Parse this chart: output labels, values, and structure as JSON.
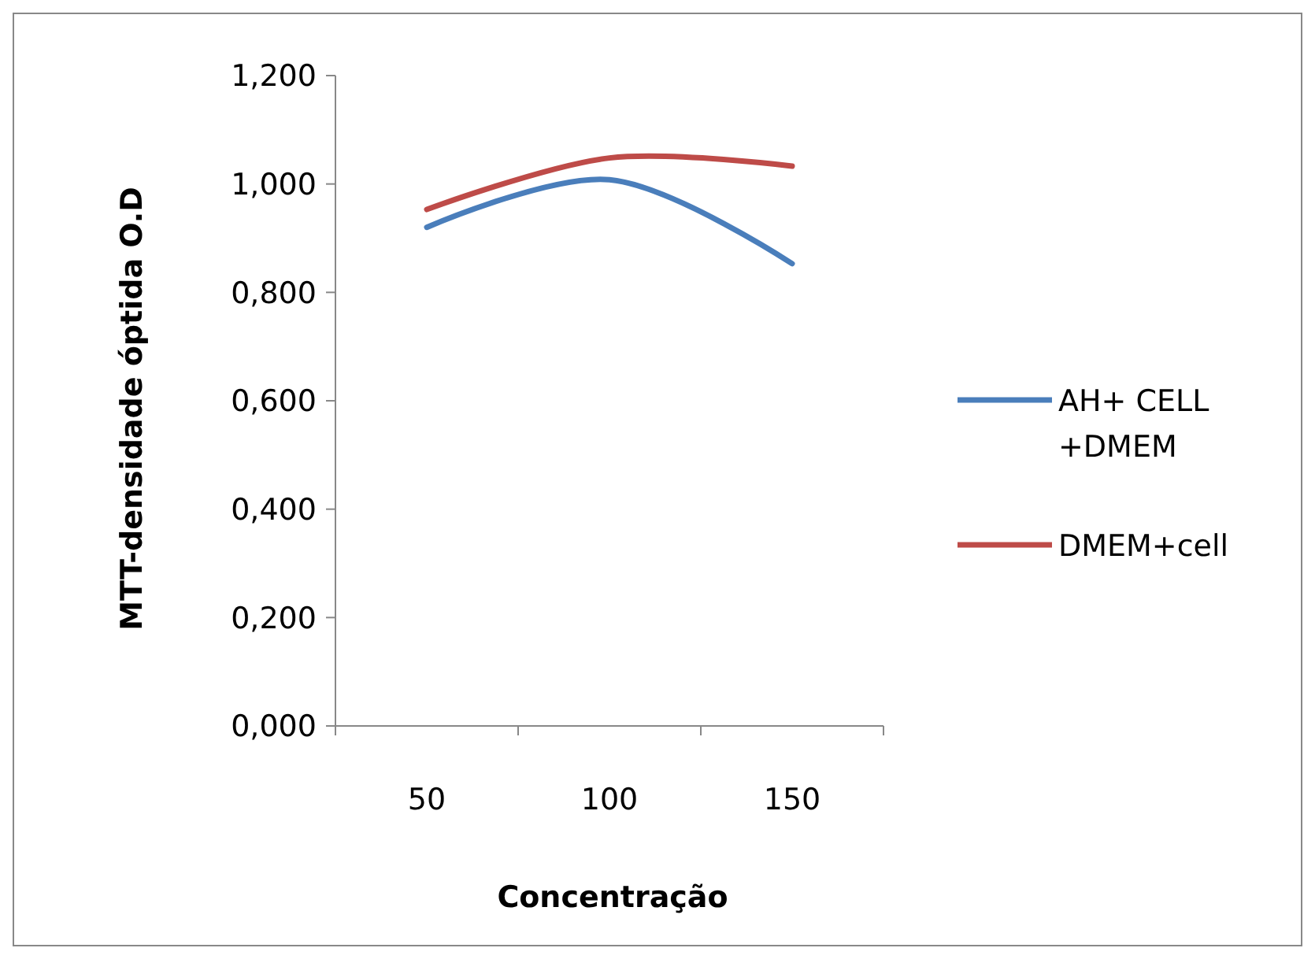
{
  "chart_data": {
    "type": "line",
    "xlabel": "Concentração",
    "ylabel": "MTT-densidade  óptida O.D",
    "categories": [
      "50",
      "100",
      "150"
    ],
    "series": [
      {
        "name": "AH+ CELL +DMEM",
        "color": "#4a7ebb",
        "values": [
          0.92,
          1.008,
          0.853
        ]
      },
      {
        "name": "DMEM+cell",
        "color": "#be4b48",
        "values": [
          0.953,
          1.048,
          1.033
        ]
      }
    ],
    "ylim": [
      0,
      1.2
    ],
    "yticks": [
      {
        "value": 0,
        "label": "0,000"
      },
      {
        "value": 0.2,
        "label": "0,200"
      },
      {
        "value": 0.4,
        "label": "0,400"
      },
      {
        "value": 0.6,
        "label": "0,600"
      },
      {
        "value": 0.8,
        "label": "0,800"
      },
      {
        "value": 1,
        "label": "1,000"
      },
      {
        "value": 1.2,
        "label": "1,200"
      }
    ],
    "grid": false,
    "legend": "right",
    "marker": "none",
    "line_style": "solid"
  }
}
